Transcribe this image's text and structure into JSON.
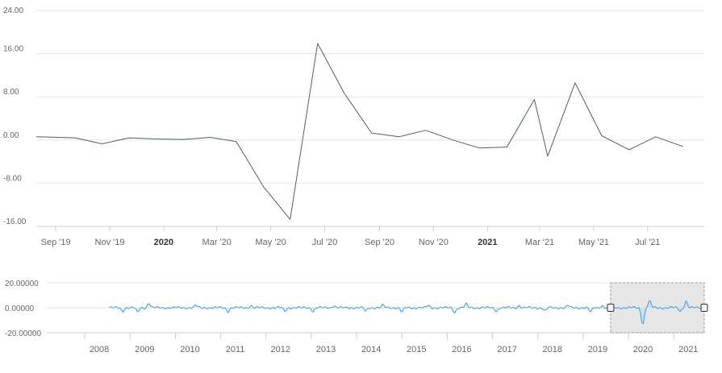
{
  "chart_data": {
    "type": "line",
    "main": {
      "ylim": [
        -16,
        24
      ],
      "y_ticks": [
        "24.00",
        "16.00",
        "8.00",
        "0.00",
        "-8.00",
        "-16.00"
      ],
      "x_ticks": [
        {
          "label": "Sep '19",
          "date": "2019-09-01",
          "bold": false
        },
        {
          "label": "Nov '19",
          "date": "2019-11-01",
          "bold": false
        },
        {
          "label": "2020",
          "date": "2020-01-01",
          "bold": true
        },
        {
          "label": "Mar '20",
          "date": "2020-03-01",
          "bold": false
        },
        {
          "label": "May '20",
          "date": "2020-05-01",
          "bold": false
        },
        {
          "label": "Jul '20",
          "date": "2020-07-01",
          "bold": false
        },
        {
          "label": "Sep '20",
          "date": "2020-09-01",
          "bold": false
        },
        {
          "label": "Nov '20",
          "date": "2020-11-01",
          "bold": false
        },
        {
          "label": "2021",
          "date": "2021-01-01",
          "bold": true
        },
        {
          "label": "Mar '21",
          "date": "2021-03-01",
          "bold": false
        },
        {
          "label": "May '21",
          "date": "2021-05-01",
          "bold": false
        },
        {
          "label": "Jul '21",
          "date": "2021-07-01",
          "bold": false
        }
      ],
      "x_range": [
        "2019-08-10",
        "2021-09-03"
      ],
      "series": [
        {
          "color": "#4a5d7e",
          "points": [
            [
              "2019-08-10",
              0.6
            ],
            [
              "2019-09-23",
              0.4
            ],
            [
              "2019-10-23",
              -0.7
            ],
            [
              "2019-11-23",
              0.4
            ],
            [
              "2019-12-23",
              0.2
            ],
            [
              "2020-01-23",
              0.1
            ],
            [
              "2020-02-23",
              0.5
            ],
            [
              "2020-03-23",
              -0.3
            ],
            [
              "2020-04-23",
              -8.7
            ],
            [
              "2020-05-23",
              -14.7
            ],
            [
              "2020-06-23",
              17.9
            ],
            [
              "2020-07-23",
              8.7
            ],
            [
              "2020-08-23",
              1.3
            ],
            [
              "2020-09-23",
              0.6
            ],
            [
              "2020-10-23",
              1.8
            ],
            [
              "2020-11-23",
              0.0
            ],
            [
              "2020-12-23",
              -1.5
            ],
            [
              "2021-01-23",
              -1.3
            ],
            [
              "2021-02-23",
              7.5
            ],
            [
              "2021-03-10",
              -3.0
            ],
            [
              "2021-04-10",
              10.6
            ],
            [
              "2021-05-10",
              0.8
            ],
            [
              "2021-06-10",
              -1.8
            ],
            [
              "2021-07-10",
              0.6
            ],
            [
              "2021-08-10",
              -1.2
            ]
          ]
        }
      ]
    },
    "navigator": {
      "ylim": [
        -20,
        20
      ],
      "y_ticks": [
        "20.00000",
        "0.00000",
        "-20.00000"
      ],
      "x_ticks": [
        "2008",
        "2009",
        "2010",
        "2011",
        "2012",
        "2013",
        "2014",
        "2015",
        "2016",
        "2017",
        "2018",
        "2019",
        "2020",
        "2021"
      ],
      "x_range": [
        "2007-03-01",
        "2021-09-03"
      ],
      "series_start": "2008-07-15",
      "series_color": "#3aa0e8",
      "selection": {
        "start": "2019-08-10",
        "end": "2021-09-03"
      },
      "selection_fill": "#e6e6e6",
      "dips": [
        {
          "at": "2008-11-01",
          "value": -3
        },
        {
          "at": "2009-03-01",
          "value": -4
        },
        {
          "at": "2009-06-01",
          "value": 4
        },
        {
          "at": "2010-06-15",
          "value": 2
        },
        {
          "at": "2011-03-01",
          "value": -3
        },
        {
          "at": "2011-09-01",
          "value": 2
        },
        {
          "at": "2012-06-01",
          "value": -3
        },
        {
          "at": "2013-01-15",
          "value": -3
        },
        {
          "at": "2013-07-01",
          "value": 2
        },
        {
          "at": "2014-03-15",
          "value": -3
        },
        {
          "at": "2014-08-01",
          "value": 2
        },
        {
          "at": "2015-01-01",
          "value": -4
        },
        {
          "at": "2015-08-01",
          "value": 2
        },
        {
          "at": "2016-03-01",
          "value": -4
        },
        {
          "at": "2016-06-01",
          "value": 3
        },
        {
          "at": "2017-02-01",
          "value": -3
        },
        {
          "at": "2017-08-01",
          "value": 2
        },
        {
          "at": "2018-03-01",
          "value": -3
        },
        {
          "at": "2018-09-01",
          "value": 2
        },
        {
          "at": "2019-03-01",
          "value": -4
        },
        {
          "at": "2019-06-01",
          "value": 2
        },
        {
          "at": "2020-04-25",
          "value": -15
        },
        {
          "at": "2020-06-20",
          "value": 6
        },
        {
          "at": "2021-02-20",
          "value": -3
        },
        {
          "at": "2021-04-10",
          "value": 6
        }
      ]
    }
  }
}
